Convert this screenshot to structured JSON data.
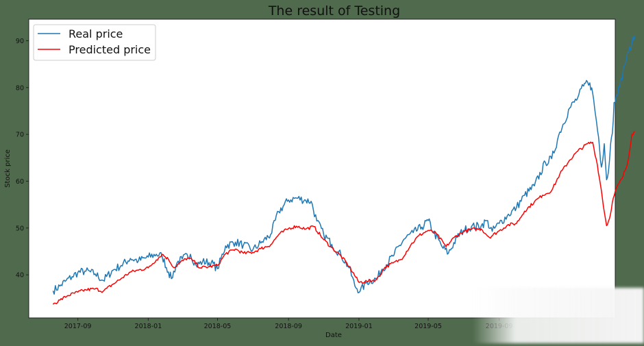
{
  "chart_data": {
    "type": "line",
    "title": "The result of Testing",
    "xlabel": "Date",
    "ylabel": "Stock price",
    "x_ticks": [
      "2017-09",
      "2018-01",
      "2018-05",
      "2018-09",
      "2019-01",
      "2019-05",
      "2019-09"
    ],
    "y_ticks": [
      40,
      50,
      60,
      70,
      80,
      90
    ],
    "xlim": [
      "2017-06-08",
      "2020-03-20"
    ],
    "ylim": [
      30.8,
      94.6
    ],
    "legend_position": "top-left",
    "grid": false,
    "series": [
      {
        "name": "Real price",
        "color": "#1f77b4",
        "points": [
          [
            "2017-07-20",
            36.6
          ],
          [
            "2017-08-01",
            37.6
          ],
          [
            "2017-08-10",
            38.6
          ],
          [
            "2017-08-22",
            39.6
          ],
          [
            "2017-09-01",
            40.5
          ],
          [
            "2017-09-15",
            40.8
          ],
          [
            "2017-10-01",
            40.2
          ],
          [
            "2017-10-15",
            38.8
          ],
          [
            "2017-11-01",
            41.0
          ],
          [
            "2017-11-15",
            42.0
          ],
          [
            "2017-12-01",
            43.5
          ],
          [
            "2017-12-15",
            43.0
          ],
          [
            "2018-01-01",
            43.8
          ],
          [
            "2018-01-15",
            44.4
          ],
          [
            "2018-01-25",
            44.0
          ],
          [
            "2018-02-05",
            40.6
          ],
          [
            "2018-02-10",
            39.2
          ],
          [
            "2018-02-20",
            42.6
          ],
          [
            "2018-03-01",
            43.4
          ],
          [
            "2018-03-15",
            44.4
          ],
          [
            "2018-03-25",
            42.0
          ],
          [
            "2018-04-05",
            42.8
          ],
          [
            "2018-04-20",
            42.6
          ],
          [
            "2018-05-01",
            41.3
          ],
          [
            "2018-05-15",
            46.2
          ],
          [
            "2018-06-01",
            47.0
          ],
          [
            "2018-06-15",
            46.4
          ],
          [
            "2018-07-01",
            45.3
          ],
          [
            "2018-07-15",
            46.8
          ],
          [
            "2018-08-01",
            48.6
          ],
          [
            "2018-08-15",
            53.5
          ],
          [
            "2018-09-01",
            56.0
          ],
          [
            "2018-09-15",
            56.4
          ],
          [
            "2018-10-01",
            55.9
          ],
          [
            "2018-10-10",
            55.7
          ],
          [
            "2018-10-20",
            51.5
          ],
          [
            "2018-11-01",
            48.6
          ],
          [
            "2018-11-15",
            46.5
          ],
          [
            "2018-12-01",
            44.2
          ],
          [
            "2018-12-15",
            41.5
          ],
          [
            "2018-12-25",
            37.6
          ],
          [
            "2019-01-03",
            36.5
          ],
          [
            "2019-01-15",
            38.5
          ],
          [
            "2019-02-01",
            39.2
          ],
          [
            "2019-02-10",
            41.2
          ],
          [
            "2019-03-01",
            44.0
          ],
          [
            "2019-03-20",
            47.6
          ],
          [
            "2019-04-05",
            49.0
          ],
          [
            "2019-04-20",
            50.2
          ],
          [
            "2019-05-01",
            51.6
          ],
          [
            "2019-05-10",
            49.2
          ],
          [
            "2019-05-25",
            46.0
          ],
          [
            "2019-06-05",
            44.6
          ],
          [
            "2019-06-20",
            48.0
          ],
          [
            "2019-07-01",
            49.5
          ],
          [
            "2019-07-15",
            50.3
          ],
          [
            "2019-08-01",
            50.5
          ],
          [
            "2019-08-10",
            51.6
          ],
          [
            "2019-08-20",
            49.3
          ],
          [
            "2019-09-01",
            51.0
          ],
          [
            "2019-09-15",
            52.6
          ],
          [
            "2019-10-01",
            54.4
          ],
          [
            "2019-10-15",
            57.0
          ],
          [
            "2019-11-01",
            59.0
          ],
          [
            "2019-11-20",
            64.0
          ],
          [
            "2019-12-01",
            64.8
          ],
          [
            "2019-12-15",
            70.5
          ],
          [
            "2020-01-01",
            75.6
          ],
          [
            "2020-01-15",
            77.8
          ],
          [
            "2020-01-25",
            80.3
          ],
          [
            "2020-02-01",
            81.2
          ],
          [
            "2020-02-05",
            81.0
          ],
          [
            "2020-02-10",
            78.8
          ],
          [
            "2020-02-15",
            74.0
          ],
          [
            "2020-02-20",
            69.5
          ],
          [
            "2020-02-25",
            63.0
          ],
          [
            "2020-03-01",
            68.0
          ],
          [
            "2020-03-05",
            60.3
          ],
          [
            "2020-03-08",
            61.8
          ],
          [
            "2020-03-12",
            68.0
          ],
          [
            "2020-03-15",
            70.2
          ],
          [
            "2020-03-18",
            76.8
          ],
          [
            "2020-03-22",
            78.5
          ],
          [
            "2020-03-28",
            80.2
          ],
          [
            "2020-04-05",
            84.8
          ],
          [
            "2020-04-12",
            87.5
          ],
          [
            "2020-04-18",
            89.6
          ],
          [
            "2020-04-23",
            91.0
          ]
        ]
      },
      {
        "name": "Predicted price",
        "color": "#ff0000",
        "points": [
          [
            "2017-07-20",
            33.7
          ],
          [
            "2017-08-01",
            34.6
          ],
          [
            "2017-08-15",
            35.6
          ],
          [
            "2017-09-01",
            36.3
          ],
          [
            "2017-09-15",
            36.8
          ],
          [
            "2017-10-01",
            37.0
          ],
          [
            "2017-10-15",
            36.5
          ],
          [
            "2017-11-01",
            38.0
          ],
          [
            "2017-11-15",
            39.2
          ],
          [
            "2017-12-01",
            40.6
          ],
          [
            "2017-12-15",
            41.0
          ],
          [
            "2018-01-01",
            41.5
          ],
          [
            "2018-01-15",
            43.2
          ],
          [
            "2018-01-25",
            44.4
          ],
          [
            "2018-02-05",
            43.3
          ],
          [
            "2018-02-15",
            41.5
          ],
          [
            "2018-02-25",
            42.6
          ],
          [
            "2018-03-10",
            43.6
          ],
          [
            "2018-03-20",
            43.0
          ],
          [
            "2018-04-01",
            41.5
          ],
          [
            "2018-04-15",
            41.7
          ],
          [
            "2018-05-01",
            42.0
          ],
          [
            "2018-05-15",
            44.5
          ],
          [
            "2018-06-01",
            45.5
          ],
          [
            "2018-06-15",
            44.6
          ],
          [
            "2018-07-01",
            44.8
          ],
          [
            "2018-07-15",
            45.6
          ],
          [
            "2018-08-01",
            46.4
          ],
          [
            "2018-08-15",
            48.6
          ],
          [
            "2018-09-01",
            49.9
          ],
          [
            "2018-09-15",
            50.4
          ],
          [
            "2018-10-01",
            49.8
          ],
          [
            "2018-10-15",
            50.3
          ],
          [
            "2018-11-01",
            47.5
          ],
          [
            "2018-11-15",
            45.8
          ],
          [
            "2018-12-01",
            44.0
          ],
          [
            "2018-12-15",
            41.8
          ],
          [
            "2019-01-01",
            38.4
          ],
          [
            "2019-01-15",
            38.6
          ],
          [
            "2019-02-01",
            39.0
          ],
          [
            "2019-02-15",
            41.6
          ],
          [
            "2019-03-01",
            42.5
          ],
          [
            "2019-03-15",
            43.3
          ],
          [
            "2019-04-01",
            46.4
          ],
          [
            "2019-04-15",
            48.4
          ],
          [
            "2019-05-01",
            49.5
          ],
          [
            "2019-05-15",
            48.8
          ],
          [
            "2019-06-01",
            46.0
          ],
          [
            "2019-06-15",
            48.0
          ],
          [
            "2019-07-01",
            49.2
          ],
          [
            "2019-07-15",
            49.7
          ],
          [
            "2019-08-01",
            49.8
          ],
          [
            "2019-08-15",
            48.0
          ],
          [
            "2019-09-01",
            49.4
          ],
          [
            "2019-09-15",
            50.6
          ],
          [
            "2019-10-01",
            51.0
          ],
          [
            "2019-10-15",
            53.6
          ],
          [
            "2019-11-01",
            55.6
          ],
          [
            "2019-11-15",
            57.0
          ],
          [
            "2019-12-01",
            58.0
          ],
          [
            "2019-12-15",
            61.5
          ],
          [
            "2020-01-01",
            64.5
          ],
          [
            "2020-01-15",
            66.4
          ],
          [
            "2020-02-01",
            68.0
          ],
          [
            "2020-02-10",
            68.3
          ],
          [
            "2020-02-18",
            63.5
          ],
          [
            "2020-02-25",
            58.0
          ],
          [
            "2020-03-01",
            53.5
          ],
          [
            "2020-03-05",
            50.5
          ],
          [
            "2020-03-10",
            52.0
          ],
          [
            "2020-03-15",
            55.5
          ],
          [
            "2020-03-22",
            58.5
          ],
          [
            "2020-04-01",
            60.6
          ],
          [
            "2020-04-10",
            63.6
          ],
          [
            "2020-04-18",
            70.0
          ],
          [
            "2020-04-23",
            70.6
          ]
        ]
      }
    ]
  }
}
